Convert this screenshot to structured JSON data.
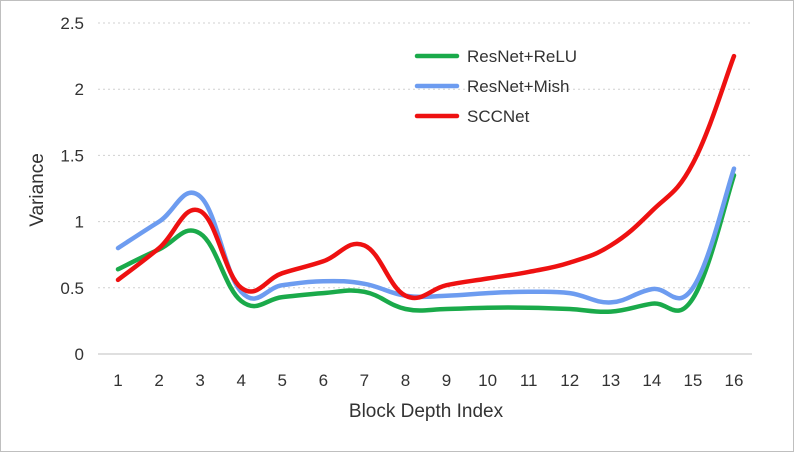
{
  "chart_data": {
    "type": "line",
    "title": "",
    "xlabel": "Block Depth Index",
    "ylabel": "Variance",
    "categories": [
      "1",
      "2",
      "3",
      "4",
      "5",
      "6",
      "7",
      "8",
      "9",
      "10",
      "11",
      "12",
      "13",
      "14",
      "15",
      "16"
    ],
    "ylim": [
      0,
      2.5
    ],
    "yticks": [
      "0",
      "0.5",
      "1",
      "1.5",
      "2",
      "2.5"
    ],
    "grid": "horizontal dotted",
    "legend_position": "top-right",
    "series": [
      {
        "name": "ResNet+ReLU",
        "color": "#1aaa4a",
        "values": [
          0.64,
          0.79,
          0.91,
          0.4,
          0.43,
          0.46,
          0.47,
          0.34,
          0.34,
          0.35,
          0.35,
          0.34,
          0.32,
          0.38,
          0.42,
          1.35
        ]
      },
      {
        "name": "ResNet+Mish",
        "color": "#6d9cf0",
        "values": [
          0.8,
          1.0,
          1.19,
          0.47,
          0.52,
          0.55,
          0.53,
          0.44,
          0.44,
          0.46,
          0.47,
          0.46,
          0.39,
          0.49,
          0.5,
          1.4
        ]
      },
      {
        "name": "SCCNet",
        "color": "#ee1111",
        "values": [
          0.56,
          0.8,
          1.08,
          0.5,
          0.61,
          0.7,
          0.82,
          0.44,
          0.52,
          0.57,
          0.62,
          0.69,
          0.82,
          1.08,
          1.44,
          2.25
        ]
      }
    ]
  }
}
